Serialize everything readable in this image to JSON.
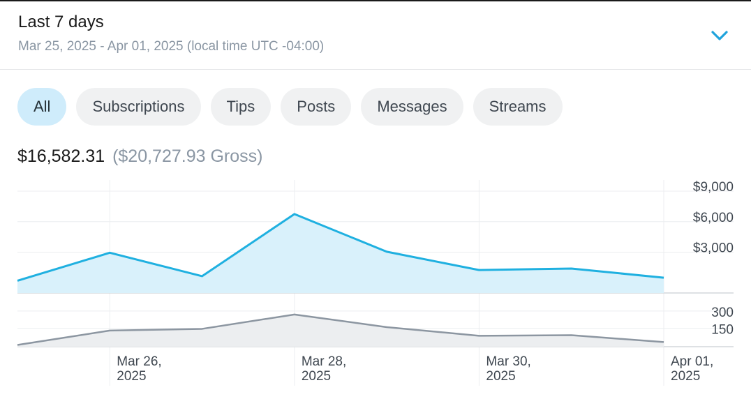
{
  "header": {
    "title": "Last 7 days",
    "subtitle": "Mar 25, 2025 - Apr 01, 2025 (local time UTC -04:00)",
    "toggle_icon": "chevron-down-icon"
  },
  "tabs": [
    {
      "label": "All",
      "active": true
    },
    {
      "label": "Subscriptions",
      "active": false
    },
    {
      "label": "Tips",
      "active": false
    },
    {
      "label": "Posts",
      "active": false
    },
    {
      "label": "Messages",
      "active": false
    },
    {
      "label": "Streams",
      "active": false
    }
  ],
  "totals": {
    "net": "$16,582.31",
    "gross": "($20,727.93 Gross)"
  },
  "colors": {
    "accent": "#1fb0e0",
    "accent_fill": "#d9f1fb",
    "count_line": "#8c96a1",
    "count_fill": "#eceef0",
    "tab_active_bg": "#cfecfb"
  },
  "chart_data": [
    {
      "type": "area",
      "x": [
        "2025-03-25",
        "2025-03-26",
        "2025-03-27",
        "2025-03-28",
        "2025-03-29",
        "2025-03-30",
        "2025-03-31",
        "2025-04-01"
      ],
      "values": [
        200,
        2950,
        650,
        6750,
        3050,
        1250,
        1400,
        500
      ],
      "ylim": [
        -1000,
        9000
      ],
      "y_ticks": [
        {
          "value": 9000,
          "label": "$9,000"
        },
        {
          "value": 6000,
          "label": "$6,000"
        },
        {
          "value": 3000,
          "label": "$3,000"
        }
      ]
    },
    {
      "type": "area",
      "x": [
        "2025-03-25",
        "2025-03-26",
        "2025-03-27",
        "2025-03-28",
        "2025-03-29",
        "2025-03-30",
        "2025-03-31",
        "2025-04-01"
      ],
      "values": [
        5,
        130,
        145,
        270,
        160,
        85,
        90,
        30
      ],
      "ylim": [
        -10,
        360
      ],
      "y_ticks": [
        {
          "value": 300,
          "label": "300"
        },
        {
          "value": 150,
          "label": "150"
        }
      ]
    }
  ],
  "x_ticks": [
    {
      "x": "2025-03-26",
      "line1": "Mar 26,",
      "line2": "2025"
    },
    {
      "x": "2025-03-28",
      "line1": "Mar 28,",
      "line2": "2025"
    },
    {
      "x": "2025-03-30",
      "line1": "Mar 30,",
      "line2": "2025"
    },
    {
      "x": "2025-04-01",
      "line1": "Apr 01,",
      "line2": "2025"
    }
  ]
}
